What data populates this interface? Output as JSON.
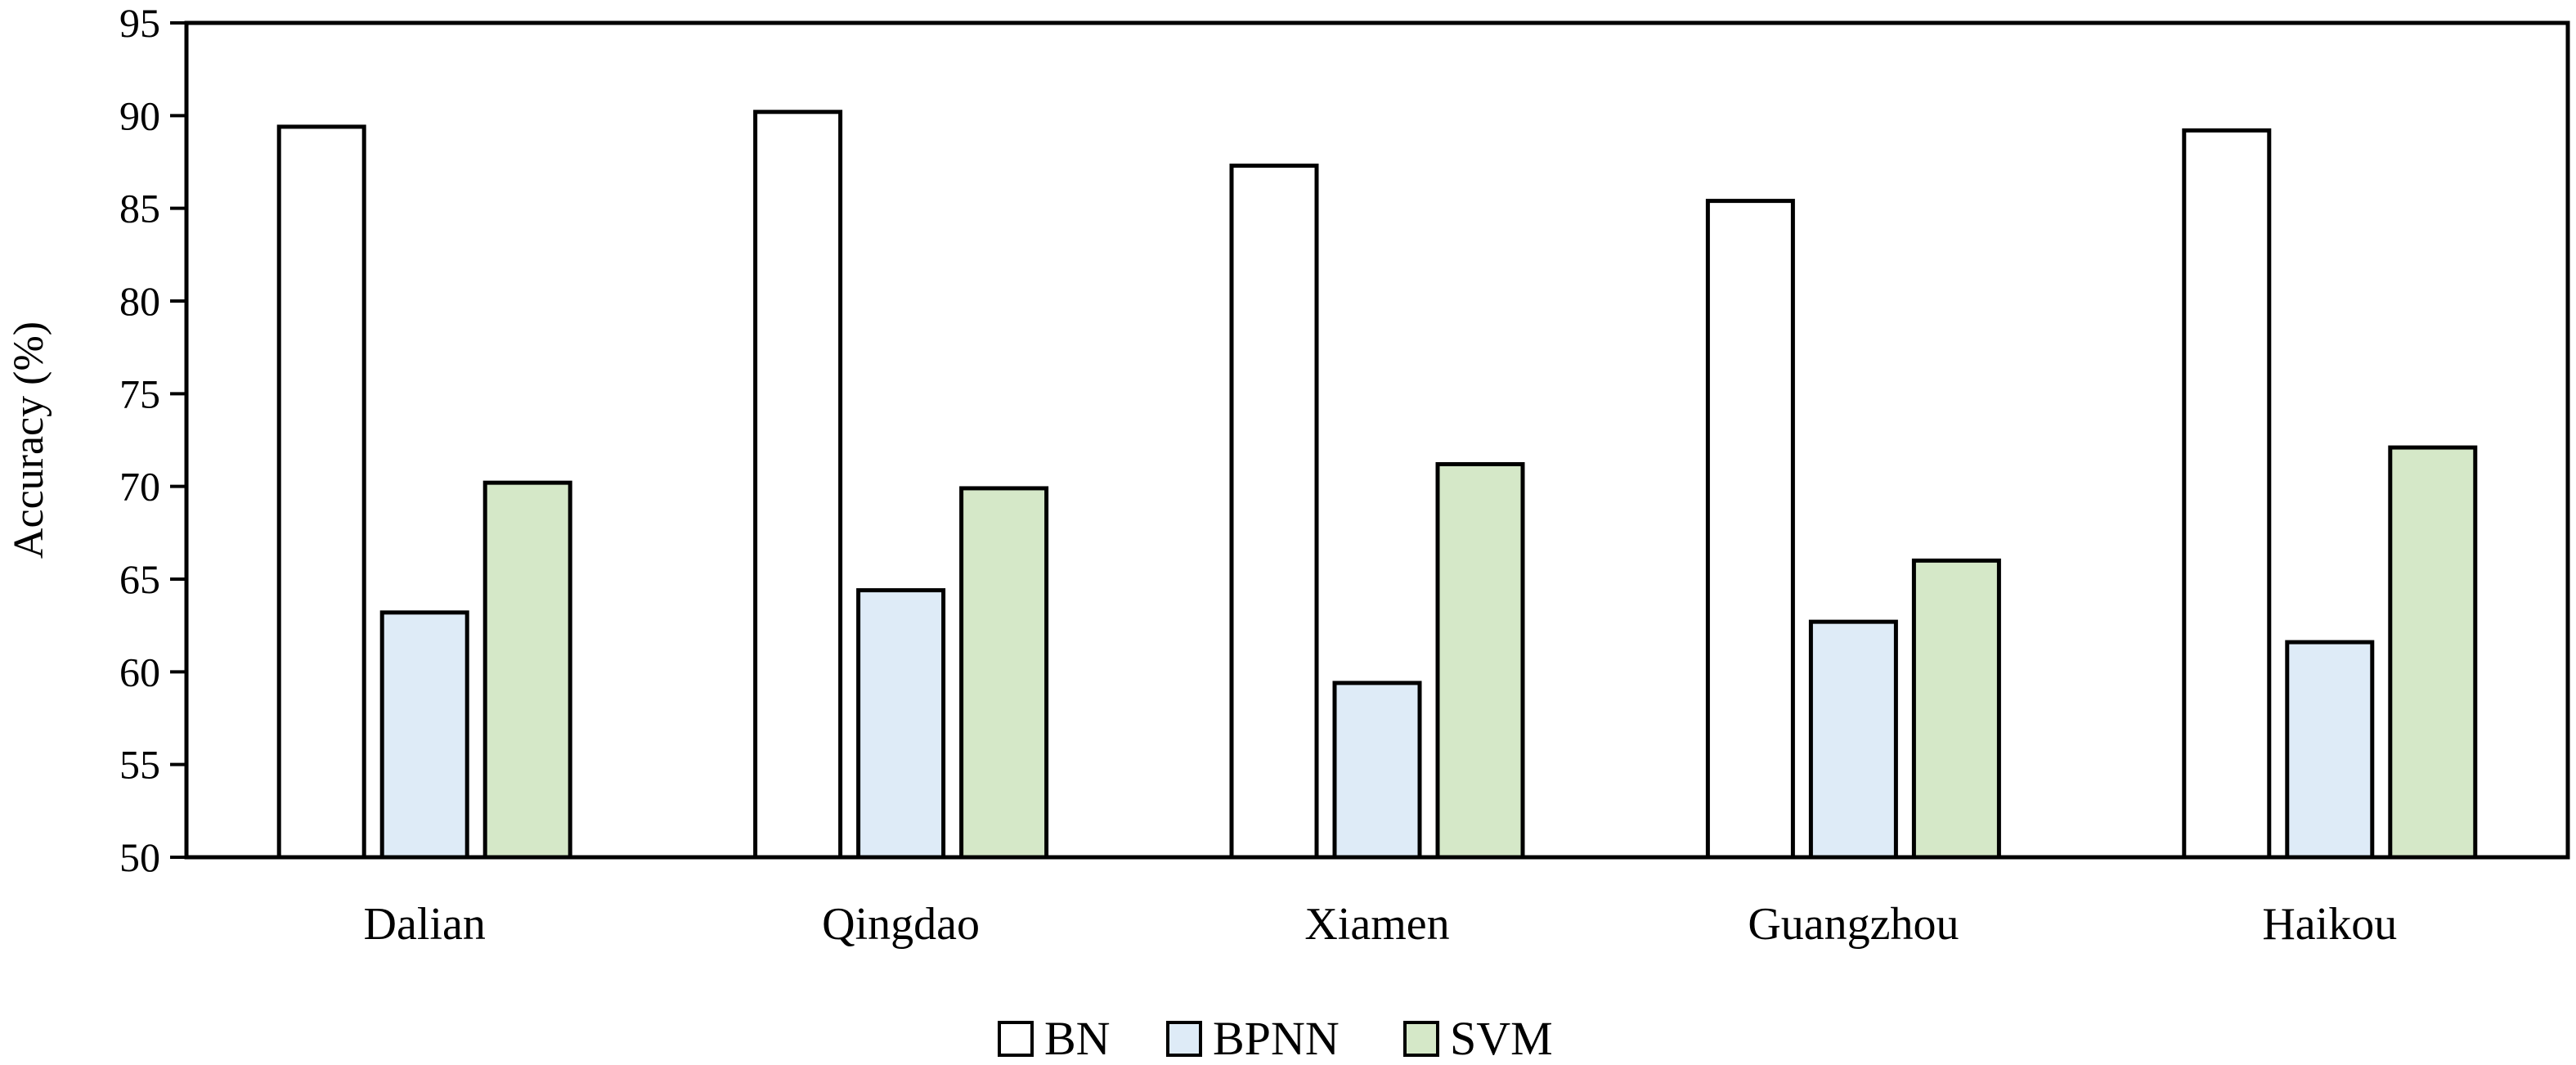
{
  "chart_data": {
    "type": "bar",
    "title": "",
    "xlabel": "",
    "ylabel": "Accuracy (%)",
    "ylim": [
      50,
      95
    ],
    "yticks": [
      50,
      55,
      60,
      65,
      70,
      75,
      80,
      85,
      90,
      95
    ],
    "grid": false,
    "legend_position": "bottom-center",
    "categories": [
      "Dalian",
      "Qingdao",
      "Xiamen",
      "Guangzhou",
      "Haikou"
    ],
    "series": [
      {
        "name": "BN",
        "color": "#ffffff",
        "values": [
          89.4,
          90.2,
          87.3,
          85.4,
          89.2
        ]
      },
      {
        "name": "BPNN",
        "color": "#deebf7",
        "values": [
          63.2,
          64.4,
          59.4,
          62.7,
          61.6
        ]
      },
      {
        "name": "SVM",
        "color": "#d5e8c8",
        "values": [
          70.2,
          69.9,
          71.2,
          66.0,
          72.1
        ]
      }
    ],
    "edge_color": "#000000"
  }
}
